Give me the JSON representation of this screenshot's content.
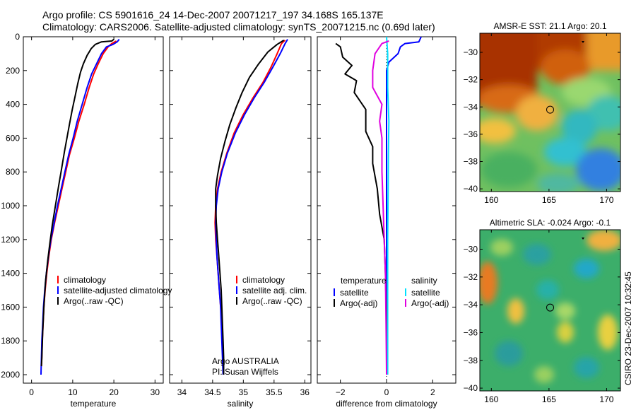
{
  "title": {
    "line1": "Argo profile: CS 5901616_24 14-Dec-2007 20071217_197 34.168S 165.137E",
    "line2": "Climatology: CARS2006. Satellite-adjusted climatology: synTS_20071215.nc (0.69d later)"
  },
  "side_note": "CSIRO 23-Dec-2007 10:32:45",
  "credit": {
    "line1": "Argo AUSTRALIA",
    "line2": "PI: Susan Wijffels"
  },
  "colors": {
    "red": "#ff0000",
    "blue": "#0000ff",
    "black": "#000000",
    "cyan": "#00e0ff",
    "magenta": "#e000e0"
  },
  "chart_data": [
    {
      "type": "line",
      "xlabel": "temperature",
      "xlim": [
        -2,
        32
      ],
      "ylim": [
        2050,
        0
      ],
      "xticks": [
        0,
        10,
        20,
        30
      ],
      "yticks": [
        0,
        200,
        400,
        600,
        800,
        1000,
        1200,
        1400,
        1600,
        1800,
        2000
      ],
      "legend": [
        "climatology",
        "satellite-adjusted climatology",
        "Argo(..raw -QC)"
      ],
      "series": [
        {
          "name": "climatology",
          "color": "#ff0000",
          "points": [
            [
              20.6,
              25
            ],
            [
              19.5,
              40
            ],
            [
              18.6,
              60
            ],
            [
              17.4,
              100
            ],
            [
              16.2,
              160
            ],
            [
              15.1,
              220
            ],
            [
              14.0,
              300
            ],
            [
              12.8,
              400
            ],
            [
              11.5,
              500
            ],
            [
              10.4,
              600
            ],
            [
              9.2,
              700
            ],
            [
              8.3,
              800
            ],
            [
              7.4,
              900
            ],
            [
              6.5,
              1000
            ],
            [
              5.6,
              1100
            ],
            [
              4.8,
              1200
            ],
            [
              4.2,
              1300
            ],
            [
              3.7,
              1400
            ],
            [
              3.3,
              1500
            ],
            [
              3.0,
              1600
            ],
            [
              2.8,
              1700
            ],
            [
              2.6,
              1800
            ],
            [
              2.5,
              1900
            ],
            [
              2.4,
              1950
            ]
          ]
        },
        {
          "name": "satellite-adjusted climatology",
          "color": "#0000ff",
          "points": [
            [
              21.3,
              15
            ],
            [
              20.8,
              30
            ],
            [
              19.8,
              45
            ],
            [
              18.2,
              60
            ],
            [
              17.0,
              100
            ],
            [
              15.8,
              160
            ],
            [
              14.6,
              220
            ],
            [
              13.5,
              300
            ],
            [
              12.3,
              400
            ],
            [
              11.1,
              500
            ],
            [
              10.1,
              600
            ],
            [
              9.0,
              700
            ],
            [
              8.1,
              800
            ],
            [
              7.2,
              900
            ],
            [
              6.3,
              1000
            ],
            [
              5.5,
              1100
            ],
            [
              4.7,
              1200
            ],
            [
              4.1,
              1300
            ],
            [
              3.6,
              1400
            ],
            [
              3.2,
              1500
            ],
            [
              2.9,
              1600
            ],
            [
              2.7,
              1700
            ],
            [
              2.5,
              1800
            ],
            [
              2.4,
              1900
            ],
            [
              2.3,
              2000
            ]
          ]
        },
        {
          "name": "Argo(..raw -QC)",
          "color": "#000000",
          "points": [
            [
              20.0,
              15
            ],
            [
              19.5,
              25
            ],
            [
              17.0,
              30
            ],
            [
              15.5,
              45
            ],
            [
              14.5,
              70
            ],
            [
              13.5,
              110
            ],
            [
              12.6,
              160
            ],
            [
              11.9,
              210
            ],
            [
              11.2,
              280
            ],
            [
              10.6,
              350
            ],
            [
              9.9,
              430
            ],
            [
              9.2,
              520
            ],
            [
              8.6,
              600
            ],
            [
              8.0,
              680
            ],
            [
              7.3,
              780
            ],
            [
              6.6,
              880
            ],
            [
              5.8,
              1000
            ],
            [
              5.0,
              1120
            ],
            [
              4.4,
              1230
            ],
            [
              3.9,
              1330
            ],
            [
              3.4,
              1450
            ],
            [
              3.0,
              1600
            ],
            [
              2.7,
              1750
            ],
            [
              2.5,
              1900
            ],
            [
              2.4,
              1950
            ]
          ]
        }
      ]
    },
    {
      "type": "line",
      "xlabel": "salinity",
      "xlim": [
        33.8,
        36.1
      ],
      "ylim": [
        2050,
        0
      ],
      "xticks": [
        34,
        34.5,
        35,
        35.5,
        36
      ],
      "legend": [
        "climatology",
        "satellite adj. clim.",
        "Argo(..raw -QC)"
      ],
      "series": [
        {
          "name": "climatology",
          "color": "#ff0000",
          "points": [
            [
              35.68,
              20
            ],
            [
              35.62,
              40
            ],
            [
              35.55,
              100
            ],
            [
              35.45,
              180
            ],
            [
              35.32,
              270
            ],
            [
              35.16,
              360
            ],
            [
              35.0,
              460
            ],
            [
              34.85,
              570
            ],
            [
              34.73,
              690
            ],
            [
              34.64,
              800
            ],
            [
              34.58,
              900
            ],
            [
              34.55,
              1000
            ],
            [
              34.54,
              1100
            ],
            [
              34.55,
              1200
            ],
            [
              34.57,
              1300
            ],
            [
              34.59,
              1400
            ],
            [
              34.61,
              1500
            ],
            [
              34.63,
              1600
            ],
            [
              34.65,
              1700
            ],
            [
              34.66,
              1800
            ],
            [
              34.67,
              1900
            ],
            [
              34.68,
              2000
            ]
          ]
        },
        {
          "name": "satellite adj. clim.",
          "color": "#0000ff",
          "points": [
            [
              35.72,
              15
            ],
            [
              35.68,
              40
            ],
            [
              35.6,
              100
            ],
            [
              35.48,
              180
            ],
            [
              35.34,
              270
            ],
            [
              35.18,
              360
            ],
            [
              35.02,
              460
            ],
            [
              34.87,
              570
            ],
            [
              34.74,
              690
            ],
            [
              34.65,
              800
            ],
            [
              34.59,
              900
            ],
            [
              34.56,
              1000
            ],
            [
              34.55,
              1100
            ],
            [
              34.56,
              1200
            ],
            [
              34.57,
              1300
            ],
            [
              34.59,
              1400
            ],
            [
              34.61,
              1500
            ],
            [
              34.63,
              1600
            ],
            [
              34.64,
              1700
            ],
            [
              34.65,
              1800
            ],
            [
              34.66,
              1900
            ],
            [
              34.67,
              2000
            ]
          ]
        },
        {
          "name": "Argo(..raw -QC)",
          "color": "#000000",
          "points": [
            [
              35.66,
              20
            ],
            [
              35.55,
              45
            ],
            [
              35.4,
              90
            ],
            [
              35.25,
              160
            ],
            [
              35.1,
              240
            ],
            [
              34.98,
              330
            ],
            [
              34.88,
              420
            ],
            [
              34.78,
              520
            ],
            [
              34.7,
              620
            ],
            [
              34.63,
              720
            ],
            [
              34.58,
              820
            ],
            [
              34.55,
              900
            ],
            [
              34.55,
              1000
            ],
            [
              34.56,
              1100
            ],
            [
              34.58,
              1200
            ],
            [
              34.6,
              1300
            ],
            [
              34.62,
              1400
            ],
            [
              34.64,
              1500
            ],
            [
              34.65,
              1600
            ],
            [
              34.66,
              1700
            ],
            [
              34.67,
              1800
            ],
            [
              34.68,
              1900
            ],
            [
              34.68,
              2000
            ]
          ]
        }
      ]
    },
    {
      "type": "line",
      "xlabel": "difference from climatology",
      "xlim": [
        -3,
        3
      ],
      "ylim": [
        2050,
        0
      ],
      "xticks": [
        -2,
        0,
        2
      ],
      "legend_left": {
        "header": "temperature",
        "items": [
          "satellite",
          "Argo(-adj)"
        ]
      },
      "legend_right": {
        "header": "salinity",
        "items": [
          "satellite",
          "Argo(-adj)"
        ]
      },
      "series": [
        {
          "name": "temperature satellite",
          "color": "#0000ff",
          "points": [
            [
              1.5,
              0
            ],
            [
              1.4,
              30
            ],
            [
              0.8,
              40
            ],
            [
              0.6,
              60
            ],
            [
              0.5,
              100
            ],
            [
              0.1,
              150
            ],
            [
              0,
              200
            ],
            [
              0,
              400
            ],
            [
              0,
              800
            ],
            [
              0,
              1200
            ],
            [
              0,
              1600
            ],
            [
              0,
              2000
            ]
          ]
        },
        {
          "name": "temperature Argo(-adj)",
          "color": "#000000",
          "points": [
            [
              -2.2,
              40
            ],
            [
              -2.0,
              60
            ],
            [
              -1.9,
              120
            ],
            [
              -1.5,
              170
            ],
            [
              -1.8,
              220
            ],
            [
              -1.3,
              260
            ],
            [
              -1.4,
              330
            ],
            [
              -0.9,
              430
            ],
            [
              -0.9,
              560
            ],
            [
              -0.6,
              650
            ],
            [
              -0.6,
              750
            ],
            [
              -0.4,
              900
            ],
            [
              -0.3,
              1050
            ],
            [
              -0.1,
              1200
            ],
            [
              -0.05,
              1400
            ],
            [
              0,
              1700
            ],
            [
              0,
              2000
            ]
          ]
        },
        {
          "name": "salinity satellite",
          "color": "#00e0ff",
          "points": [
            [
              0,
              0
            ],
            [
              0.05,
              100
            ],
            [
              0.05,
              300
            ],
            [
              0.1,
              500
            ],
            [
              0.08,
              700
            ],
            [
              0.07,
              900
            ],
            [
              0.05,
              1200
            ],
            [
              0.05,
              1500
            ],
            [
              0.05,
              1800
            ],
            [
              0.05,
              2000
            ]
          ]
        },
        {
          "name": "salinity Argo(-adj)",
          "color": "#e000e0",
          "points": [
            [
              0.1,
              25
            ],
            [
              -0.2,
              40
            ],
            [
              -0.5,
              100
            ],
            [
              -0.6,
              200
            ],
            [
              -0.6,
              300
            ],
            [
              -0.2,
              400
            ],
            [
              -0.3,
              500
            ],
            [
              -0.2,
              600
            ],
            [
              -0.2,
              800
            ],
            [
              -0.15,
              1000
            ],
            [
              -0.1,
              1200
            ],
            [
              -0.05,
              1400
            ],
            [
              -0.02,
              1700
            ],
            [
              0,
              2000
            ]
          ]
        }
      ]
    },
    {
      "type": "heatmap",
      "title": "AMSR-E SST: 21.1 Argo: 20.1",
      "xlim": [
        159,
        171.2
      ],
      "ylim": [
        -40.2,
        -28.6
      ],
      "xticks": [
        160,
        165,
        170
      ],
      "yticks": [
        -30,
        -32,
        -34,
        -36,
        -38,
        -40
      ],
      "marker": [
        165.1,
        -34.2
      ]
    },
    {
      "type": "heatmap",
      "title": "Altimetric SLA: -0.024 Argo: -0.1",
      "xlim": [
        159,
        171.2
      ],
      "ylim": [
        -40.2,
        -28.6
      ],
      "xticks": [
        160,
        165,
        170
      ],
      "yticks": [
        -30,
        -32,
        -34,
        -36,
        -38,
        -40
      ],
      "marker": [
        165.1,
        -34.2
      ]
    }
  ]
}
